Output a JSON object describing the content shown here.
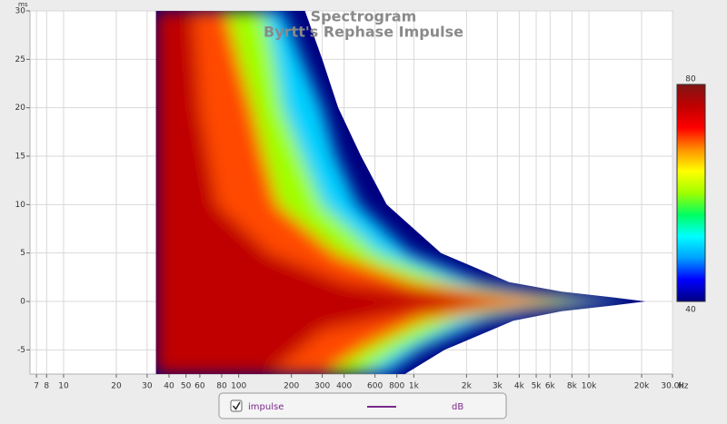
{
  "chart_data": {
    "type": "spectrogram",
    "title": "Spectrogram",
    "subtitle": "Byrtt's Rephase Impulse",
    "x_unit": "Hz",
    "y_unit": "ms",
    "log_x": true,
    "grid": true,
    "xlim": [
      6.43,
      30000
    ],
    "ylim": [
      -7.5,
      30
    ],
    "xticks": [
      7,
      8,
      10,
      20,
      30,
      40,
      50,
      60,
      80,
      100,
      200,
      300,
      400,
      600,
      800,
      {
        "value": 1000,
        "label": "1k"
      },
      {
        "value": 2000,
        "label": "2k"
      },
      {
        "value": 3000,
        "label": "3k"
      },
      {
        "value": 4000,
        "label": "4k"
      },
      {
        "value": 5000,
        "label": "5k"
      },
      {
        "value": 6000,
        "label": "6k"
      },
      {
        "value": 8000,
        "label": "8k"
      },
      {
        "value": 10000,
        "label": "10k"
      },
      {
        "value": 20000,
        "label": "20k"
      },
      {
        "value": 30000,
        "label": "30.0k"
      }
    ],
    "yticks": [
      -5,
      0,
      5,
      10,
      15,
      20,
      25,
      30
    ],
    "colorbar": {
      "range": [
        40,
        80
      ],
      "colors": [
        "#000080",
        "#0000ff",
        "#00a0ff",
        "#00ffff",
        "#00ff60",
        "#a0ff00",
        "#ffff00",
        "#ff9000",
        "#ff0000",
        "#c00000",
        "#7f1515"
      ]
    },
    "contours": [
      {
        "level": 40,
        "x": [
          33.7,
          239,
          300,
          370,
          500,
          700,
          1430,
          3500,
          7000,
          14000,
          21000,
          14000,
          7000,
          3700,
          1500,
          890,
          33.7
        ],
        "y": [
          30,
          30,
          25,
          20,
          15,
          10,
          5,
          2,
          1,
          0.4,
          0,
          -0.4,
          -1,
          -2,
          -5,
          -7.5,
          -7.5
        ]
      },
      {
        "level": 50,
        "x": [
          33.7,
          178,
          230,
          300,
          360,
          480,
          950,
          2400,
          5000,
          12000,
          19000,
          12000,
          5000,
          2600,
          1100,
          700,
          33.7
        ],
        "y": [
          30,
          30,
          25,
          20,
          15,
          10,
          5,
          2,
          1,
          0.3,
          0,
          -0.3,
          -1,
          -2,
          -5,
          -7.5,
          -7.5
        ]
      },
      {
        "level": 60,
        "x": [
          33.7,
          140,
          160,
          178,
          230,
          300,
          620,
          1700,
          3800,
          10000,
          17000,
          10000,
          3800,
          1800,
          830,
          510,
          33.7
        ],
        "y": [
          30,
          30,
          25,
          20,
          15,
          10,
          5,
          2,
          1,
          0.2,
          0,
          -0.2,
          -1,
          -2,
          -5,
          -7.5,
          -7.5
        ]
      },
      {
        "level": 70,
        "x": [
          33.7,
          85,
          100,
          120,
          140,
          167,
          360,
          1000,
          2500,
          7000,
          14000,
          7000,
          2500,
          1100,
          510,
          316,
          33.7
        ],
        "y": [
          30,
          30,
          25,
          20,
          15,
          10,
          5,
          2,
          1,
          0.15,
          0,
          -0.15,
          -1,
          -2,
          -5,
          -7.5,
          -7.5
        ]
      },
      {
        "level": 76,
        "x": [
          33.7,
          55,
          60,
          75,
          150,
          400,
          1000,
          4000,
          1000,
          300,
          150,
          33.7
        ],
        "y": [
          30,
          30,
          20,
          10,
          5,
          2,
          1,
          0,
          -1,
          -3,
          -7.5,
          -7.5
        ]
      }
    ],
    "series": [
      {
        "name": "impulse",
        "color": "#7b2a8c",
        "unit": "dB"
      }
    ]
  }
}
